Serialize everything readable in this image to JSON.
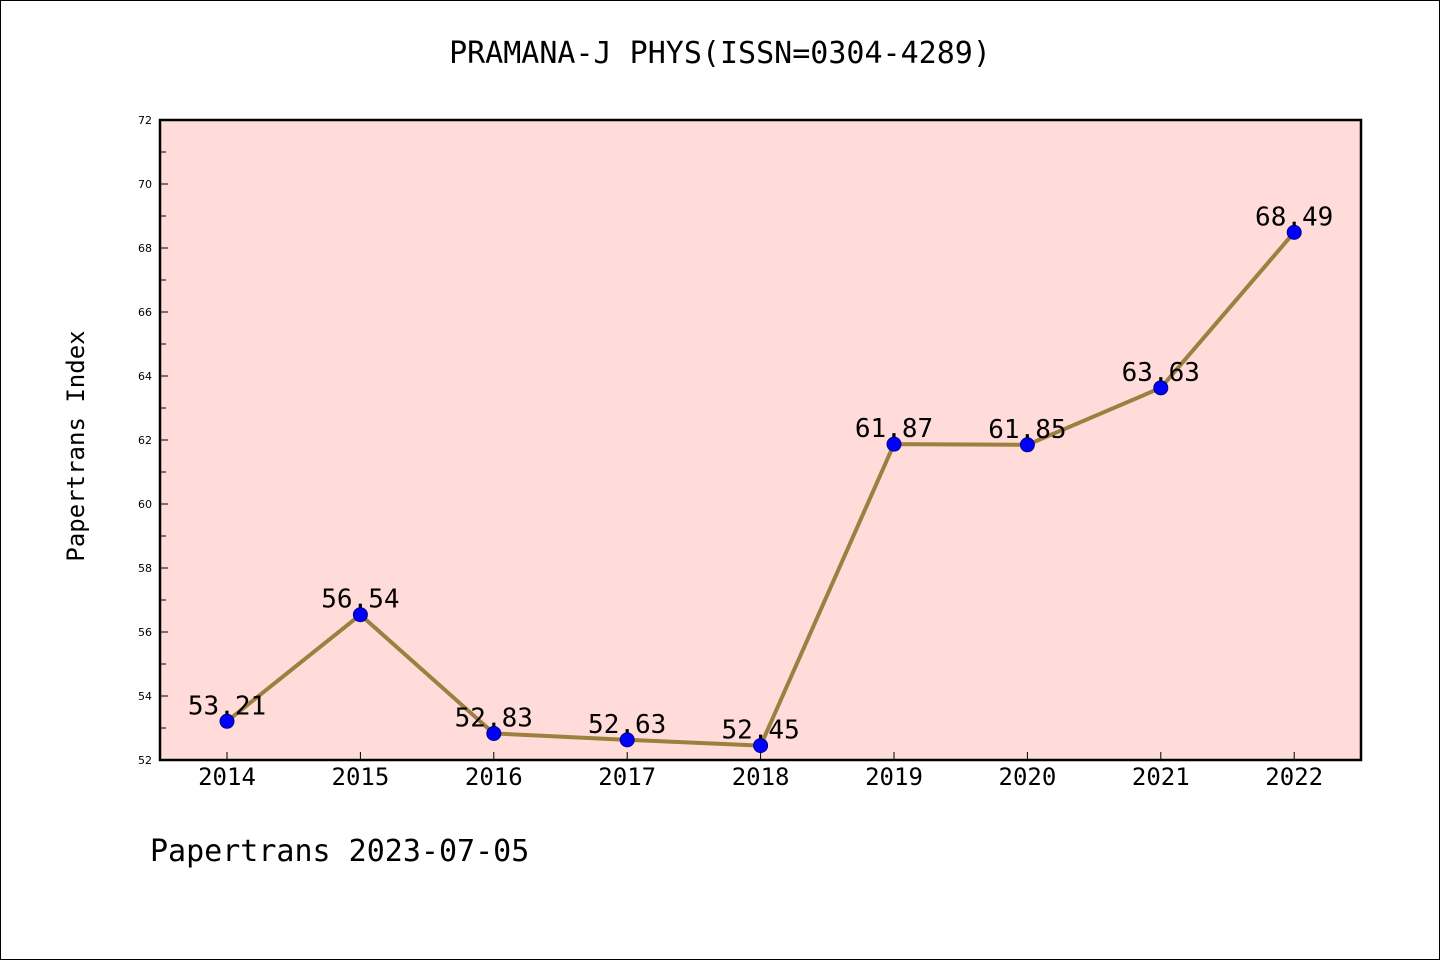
{
  "chart_data": {
    "type": "line",
    "title": "PRAMANA-J PHYS(ISSN=0304-4289)",
    "xlabel": "",
    "ylabel": "Papertrans Index",
    "footer": "Papertrans 2023-07-05",
    "x": [
      "2014",
      "2015",
      "2016",
      "2017",
      "2018",
      "2019",
      "2020",
      "2021",
      "2022"
    ],
    "series": [
      {
        "values": [
          53.21,
          56.54,
          52.83,
          52.63,
          52.45,
          61.87,
          61.85,
          63.63,
          68.49
        ],
        "labels": [
          "53.21",
          "56.54",
          "52.83",
          "52.63",
          "52.45",
          "61.87",
          "61.85",
          "63.63",
          "68.49"
        ]
      }
    ],
    "ylim": [
      52,
      72
    ],
    "yticks": [
      52,
      54,
      56,
      58,
      60,
      62,
      64,
      66,
      68,
      70,
      72
    ],
    "grid": false,
    "colors": {
      "plot_background": "#ffdcd9",
      "line": "#9b8040",
      "marker": "#0000ff",
      "marker_edge": "#00008b"
    }
  }
}
